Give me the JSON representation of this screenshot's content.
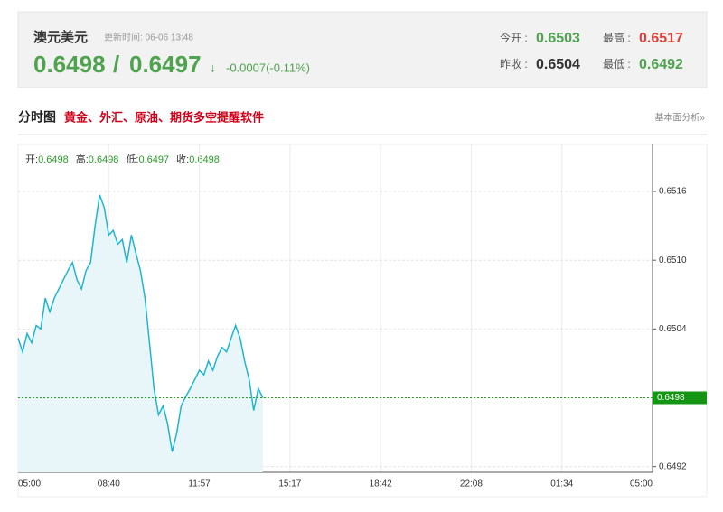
{
  "header": {
    "title": "澳元美元",
    "update_time": "更新时间: 06-06 13:48",
    "bid": "0.6498",
    "separator": "/",
    "ask": "0.6497",
    "arrow": "↓",
    "change": "-0.0007(-0.11%)",
    "stats": [
      {
        "label": "今开 :",
        "value": "0.6503",
        "color": "#4fa34f"
      },
      {
        "label": "最高 :",
        "value": "0.6517",
        "color": "#e0403a"
      },
      {
        "label": "昨收 :",
        "value": "0.6504",
        "color": "#333333"
      },
      {
        "label": "最低 :",
        "value": "0.6492",
        "color": "#4fa34f"
      }
    ]
  },
  "section": {
    "title": "分时图",
    "promo": "黄金、外汇、原油、期货多空提醒软件",
    "link": "基本面分析»"
  },
  "chart_data": {
    "type": "line",
    "ohlc": [
      {
        "label": "开:",
        "value": 0.6498
      },
      {
        "label": "高:",
        "value": 0.6498
      },
      {
        "label": "低:",
        "value": 0.6497
      },
      {
        "label": "收:",
        "value": 0.6498
      }
    ],
    "xticks": [
      "05:00",
      "08:40",
      "11:57",
      "15:17",
      "18:42",
      "22:08",
      "01:34",
      "05:00"
    ],
    "series": [
      {
        "name": "澳元美元",
        "color": "#1fb5cf",
        "values": [
          0.65032,
          0.6502,
          0.65036,
          0.65028,
          0.65043,
          0.6504,
          0.65067,
          0.65055,
          0.65067,
          0.65075,
          0.65083,
          0.65091,
          0.65098,
          0.65083,
          0.65075,
          0.65091,
          0.65098,
          0.6513,
          0.65157,
          0.65146,
          0.65122,
          0.65126,
          0.65114,
          0.65118,
          0.65098,
          0.65122,
          0.65106,
          0.65091,
          0.65067,
          0.65028,
          0.64988,
          0.64965,
          0.64973,
          0.64957,
          0.64933,
          0.64949,
          0.64973,
          0.64981,
          0.64988,
          0.64996,
          0.65004,
          0.65,
          0.65012,
          0.65004,
          0.65016,
          0.65024,
          0.6502,
          0.65032,
          0.65043,
          0.65032,
          0.65012,
          0.64996,
          0.64969,
          0.64988,
          0.6498
        ]
      }
    ],
    "last_price": 0.6498,
    "ylim": [
      0.64915,
      0.65201
    ],
    "yticks": [
      0.6492,
      0.6498,
      0.6504,
      {
        "value": 0.651,
        "label": "0.6510"
      },
      0.6516
    ],
    "grid": true
  }
}
